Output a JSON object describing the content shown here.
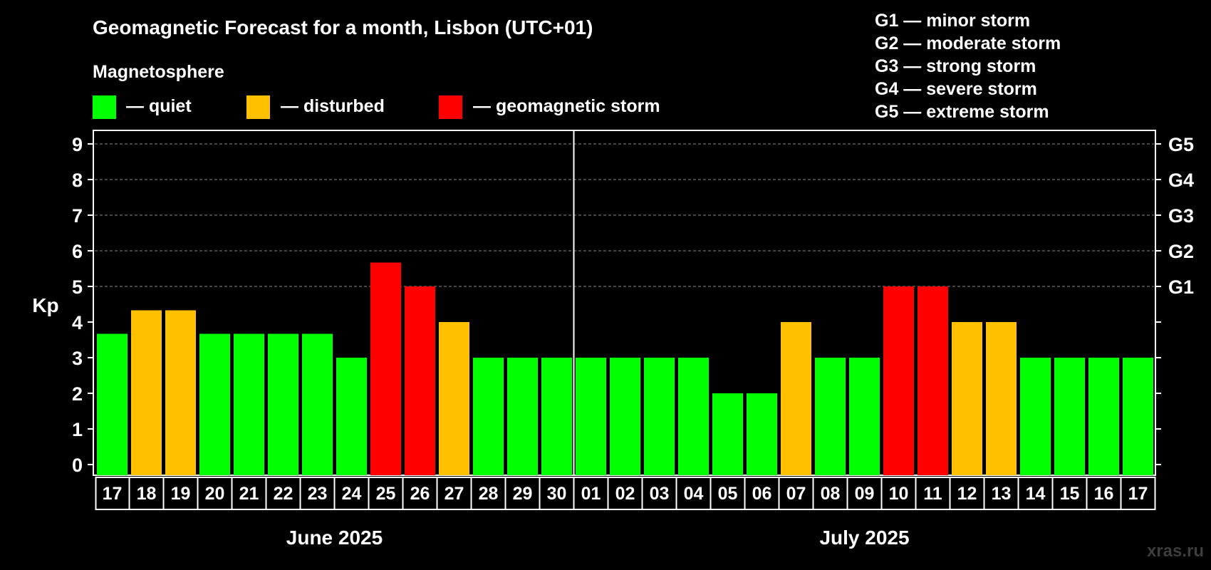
{
  "header": {
    "title": "Geomagnetic Forecast for a month, Lisbon (UTC+01)",
    "legend_title": "Magnetosphere",
    "legend": [
      {
        "label": "— quiet",
        "color": "#00ff00"
      },
      {
        "label": "— disturbed",
        "color": "#ffc000"
      },
      {
        "label": "— geomagnetic storm",
        "color": "#ff0000"
      }
    ],
    "storm_scale": [
      "G1 — minor storm",
      "G2 — moderate storm",
      "G3 — strong storm",
      "G4 — severe storm",
      "G5 — extreme storm"
    ]
  },
  "watermark": "xras.ru",
  "chart_data": {
    "type": "bar",
    "ylabel": "Kp",
    "ylim": [
      0,
      9
    ],
    "yticks": [
      "0",
      "1",
      "2",
      "3",
      "4",
      "5",
      "6",
      "7",
      "8",
      "9"
    ],
    "right_axis_labels": [
      {
        "kp": 5,
        "label": "G1"
      },
      {
        "kp": 6,
        "label": "G2"
      },
      {
        "kp": 7,
        "label": "G3"
      },
      {
        "kp": 8,
        "label": "G4"
      },
      {
        "kp": 9,
        "label": "G5"
      }
    ],
    "grid": "dashed horizontal lines at Kp 5–9",
    "categories": [
      "17",
      "18",
      "19",
      "20",
      "21",
      "22",
      "23",
      "24",
      "25",
      "26",
      "27",
      "28",
      "29",
      "30",
      "01",
      "02",
      "03",
      "04",
      "05",
      "06",
      "07",
      "08",
      "09",
      "10",
      "11",
      "12",
      "13",
      "14",
      "15",
      "16",
      "17"
    ],
    "values": [
      3.67,
      4.33,
      4.33,
      3.67,
      3.67,
      3.67,
      3.67,
      3.0,
      5.67,
      5.0,
      4.0,
      3.0,
      3.0,
      3.0,
      3.0,
      3.0,
      3.0,
      3.0,
      2.0,
      2.0,
      4.0,
      3.0,
      3.0,
      5.0,
      5.0,
      4.0,
      4.0,
      3.0,
      3.0,
      3.0,
      3.0
    ],
    "levels": [
      "quiet",
      "disturbed",
      "disturbed",
      "quiet",
      "quiet",
      "quiet",
      "quiet",
      "quiet",
      "storm",
      "storm",
      "disturbed",
      "quiet",
      "quiet",
      "quiet",
      "quiet",
      "quiet",
      "quiet",
      "quiet",
      "quiet",
      "quiet",
      "disturbed",
      "quiet",
      "quiet",
      "storm",
      "storm",
      "disturbed",
      "disturbed",
      "quiet",
      "quiet",
      "quiet",
      "quiet"
    ],
    "level_colors": {
      "quiet": "#00ff00",
      "disturbed": "#ffc000",
      "storm": "#ff0000"
    },
    "months": [
      {
        "label": "June 2025",
        "first_index": 0,
        "last_index": 13
      },
      {
        "label": "July 2025",
        "first_index": 14,
        "last_index": 30
      }
    ]
  }
}
